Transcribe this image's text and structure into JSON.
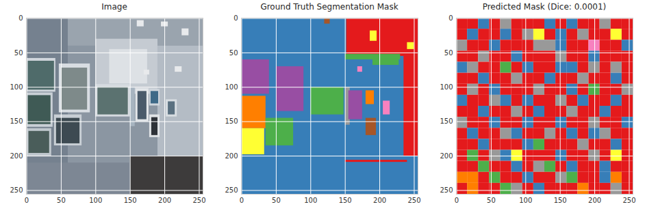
{
  "chart_data": [
    {
      "type": "image",
      "title": "Image",
      "xlim": [
        -0.5,
        255.5
      ],
      "ylim": [
        255.5,
        -0.5
      ],
      "xticks": [
        0,
        50,
        100,
        150,
        200,
        250
      ],
      "yticks": [
        0,
        50,
        100,
        150,
        200,
        250
      ],
      "grid": true,
      "regions": [
        {
          "x1": -0.5,
          "y1": -0.5,
          "x2": 255.5,
          "y2": 255.5,
          "color": "#8b96a2"
        },
        {
          "x1": -0.5,
          "y1": -0.5,
          "x2": 60,
          "y2": 255.5,
          "color": "#75818f"
        },
        {
          "x1": 60,
          "y1": -0.5,
          "x2": 255.5,
          "y2": 40,
          "color": "#9aa4ae"
        },
        {
          "x1": 100,
          "y1": 30,
          "x2": 190,
          "y2": 110,
          "color": "#c5cbd2"
        },
        {
          "x1": 120,
          "y1": 45,
          "x2": 175,
          "y2": 95,
          "color": "#dde1e5"
        },
        {
          "x1": 190,
          "y1": 40,
          "x2": 255.5,
          "y2": 200,
          "color": "#b4bcc5"
        },
        {
          "x1": 150,
          "y1": 200,
          "x2": 255.5,
          "y2": 255.5,
          "color": "#3d3b3b"
        },
        {
          "x1": -0.5,
          "y1": 210,
          "x2": 150,
          "y2": 255.5,
          "color": "#7d8794"
        },
        {
          "x1": 160,
          "y1": 3,
          "x2": 170,
          "y2": 12,
          "color": "#e8eaec"
        },
        {
          "x1": 195,
          "y1": 5,
          "x2": 205,
          "y2": 12,
          "color": "#e8eaec"
        },
        {
          "x1": 225,
          "y1": 15,
          "x2": 235,
          "y2": 25,
          "color": "#e8eaec"
        },
        {
          "x1": 215,
          "y1": 70,
          "x2": 225,
          "y2": 78,
          "color": "#e8eaec"
        },
        {
          "x1": 170,
          "y1": 75,
          "x2": 178,
          "y2": 82,
          "color": "#e8eaec"
        },
        {
          "x1": 0,
          "y1": 58,
          "x2": 42,
          "y2": 107,
          "color": "#d0d6dc"
        },
        {
          "x1": 2,
          "y1": 62,
          "x2": 40,
          "y2": 104,
          "color": "#4f6b6a"
        },
        {
          "x1": 47,
          "y1": 66,
          "x2": 92,
          "y2": 137,
          "color": "#d8dde2"
        },
        {
          "x1": 51,
          "y1": 72,
          "x2": 88,
          "y2": 133,
          "color": "#7e8a8a"
        },
        {
          "x1": 0,
          "y1": 108,
          "x2": 38,
          "y2": 158,
          "color": "#c9d0d6"
        },
        {
          "x1": 2,
          "y1": 112,
          "x2": 35,
          "y2": 154,
          "color": "#3f5a55"
        },
        {
          "x1": 0,
          "y1": 160,
          "x2": 36,
          "y2": 200,
          "color": "#c0c8ce"
        },
        {
          "x1": 3,
          "y1": 164,
          "x2": 33,
          "y2": 196,
          "color": "#4a5d5a"
        },
        {
          "x1": 40,
          "y1": 140,
          "x2": 80,
          "y2": 185,
          "color": "#c8cfd5"
        },
        {
          "x1": 43,
          "y1": 145,
          "x2": 77,
          "y2": 182,
          "color": "#3d4a52"
        },
        {
          "x1": 100,
          "y1": 96,
          "x2": 150,
          "y2": 143,
          "color": "#d6dbe0"
        },
        {
          "x1": 103,
          "y1": 100,
          "x2": 147,
          "y2": 140,
          "color": "#5b7270"
        },
        {
          "x1": 150,
          "y1": 100,
          "x2": 157,
          "y2": 157,
          "color": "#a7b4c0"
        },
        {
          "x1": 158,
          "y1": 102,
          "x2": 177,
          "y2": 150,
          "color": "#e4e7ea"
        },
        {
          "x1": 161,
          "y1": 106,
          "x2": 174,
          "y2": 147,
          "color": "#4a5a6a"
        },
        {
          "x1": 178,
          "y1": 103,
          "x2": 193,
          "y2": 127,
          "color": "#cfd6dd"
        },
        {
          "x1": 180,
          "y1": 106,
          "x2": 191,
          "y2": 124,
          "color": "#3e6a88"
        },
        {
          "x1": 178,
          "y1": 140,
          "x2": 193,
          "y2": 173,
          "color": "#e0e3e6"
        },
        {
          "x1": 181,
          "y1": 144,
          "x2": 190,
          "y2": 170,
          "color": "#2e3238"
        },
        {
          "x1": 202,
          "y1": 118,
          "x2": 218,
          "y2": 143,
          "color": "#d8dde2"
        },
        {
          "x1": 205,
          "y1": 121,
          "x2": 215,
          "y2": 140,
          "color": "#5a7080"
        }
      ]
    },
    {
      "type": "image",
      "title": "Ground Truth Segmentation Mask",
      "xlim": [
        -0.5,
        255.5
      ],
      "ylim": [
        255.5,
        -0.5
      ],
      "xticks": [
        0,
        50,
        100,
        150,
        200,
        250
      ],
      "yticks": [
        0,
        50,
        100,
        150,
        200,
        250
      ],
      "grid": true,
      "regions": [
        {
          "x1": -0.5,
          "y1": -0.5,
          "x2": 255.5,
          "y2": 255.5,
          "color": "#377eb8"
        },
        {
          "x1": 152,
          "y1": -0.5,
          "x2": 255.5,
          "y2": 55,
          "color": "#e41a1c"
        },
        {
          "x1": 235,
          "y1": 55,
          "x2": 255.5,
          "y2": 200,
          "color": "#e41a1c"
        },
        {
          "x1": 120,
          "y1": -0.5,
          "x2": 128,
          "y2": 8,
          "color": "#a65628"
        },
        {
          "x1": 186,
          "y1": 18,
          "x2": 196,
          "y2": 33,
          "color": "#ffff33"
        },
        {
          "x1": 240,
          "y1": 35,
          "x2": 250,
          "y2": 45,
          "color": "#ffff33"
        },
        {
          "x1": 150,
          "y1": 52,
          "x2": 230,
          "y2": 60,
          "color": "#4daf4a"
        },
        {
          "x1": 190,
          "y1": 60,
          "x2": 228,
          "y2": 68,
          "color": "#4daf4a"
        },
        {
          "x1": 168,
          "y1": 70,
          "x2": 175,
          "y2": 78,
          "color": "#f781bf"
        },
        {
          "x1": 0,
          "y1": 60,
          "x2": 40,
          "y2": 110,
          "color": "#984ea3"
        },
        {
          "x1": 50,
          "y1": 70,
          "x2": 90,
          "y2": 135,
          "color": "#984ea3"
        },
        {
          "x1": 0,
          "y1": 113,
          "x2": 35,
          "y2": 160,
          "color": "#ff7f00"
        },
        {
          "x1": 0,
          "y1": 160,
          "x2": 33,
          "y2": 198,
          "color": "#ffff33"
        },
        {
          "x1": 100,
          "y1": 100,
          "x2": 148,
          "y2": 140,
          "color": "#4daf4a"
        },
        {
          "x1": 35,
          "y1": 145,
          "x2": 75,
          "y2": 185,
          "color": "#4daf4a"
        },
        {
          "x1": 150,
          "y1": 100,
          "x2": 157,
          "y2": 155,
          "color": "#999999"
        },
        {
          "x1": 155,
          "y1": 105,
          "x2": 175,
          "y2": 147,
          "color": "#984ea3"
        },
        {
          "x1": 180,
          "y1": 105,
          "x2": 192,
          "y2": 125,
          "color": "#ff7f00"
        },
        {
          "x1": 205,
          "y1": 120,
          "x2": 215,
          "y2": 140,
          "color": "#f781bf"
        },
        {
          "x1": 180,
          "y1": 145,
          "x2": 195,
          "y2": 170,
          "color": "#a65628"
        },
        {
          "x1": 150,
          "y1": 206,
          "x2": 240,
          "y2": 209,
          "color": "#e41a1c"
        }
      ]
    },
    {
      "type": "image",
      "title": "Predicted Mask (Dice: 0.0001)",
      "xlim": [
        -0.5,
        255.5
      ],
      "ylim": [
        255.5,
        -0.5
      ],
      "xticks": [
        0,
        50,
        100,
        150,
        200,
        250
      ],
      "yticks": [
        0,
        50,
        100,
        150,
        200,
        250
      ],
      "grid": true,
      "palette": [
        "#377eb8",
        "#e41a1c",
        "#999999",
        "#4daf4a",
        "#ffff33",
        "#ff7f00",
        "#984ea3",
        "#f781bf"
      ],
      "cells": [
        [
          1,
          1,
          0,
          1,
          2,
          1,
          1,
          1,
          0,
          1,
          0,
          1,
          1,
          2,
          1,
          1
        ],
        [
          1,
          0,
          1,
          1,
          0,
          1,
          2,
          4,
          1,
          0,
          1,
          2,
          1,
          1,
          4,
          1
        ],
        [
          2,
          1,
          1,
          0,
          1,
          1,
          1,
          2,
          2,
          0,
          1,
          1,
          7,
          1,
          1,
          0
        ],
        [
          1,
          1,
          2,
          1,
          1,
          0,
          1,
          1,
          1,
          2,
          1,
          1,
          0,
          1,
          1,
          1
        ],
        [
          0,
          2,
          1,
          1,
          3,
          1,
          0,
          1,
          1,
          0,
          0,
          1,
          2,
          1,
          2,
          1
        ],
        [
          1,
          1,
          0,
          1,
          1,
          2,
          1,
          1,
          0,
          1,
          1,
          2,
          1,
          1,
          0,
          1
        ],
        [
          1,
          2,
          1,
          0,
          1,
          1,
          1,
          2,
          1,
          1,
          0,
          1,
          3,
          1,
          1,
          2
        ],
        [
          0,
          1,
          1,
          2,
          0,
          1,
          0,
          1,
          1,
          2,
          1,
          0,
          1,
          1,
          0,
          1
        ],
        [
          1,
          1,
          0,
          1,
          1,
          2,
          1,
          0,
          1,
          1,
          2,
          1,
          1,
          0,
          1,
          1
        ],
        [
          2,
          1,
          1,
          0,
          1,
          1,
          0,
          1,
          1,
          0,
          1,
          1,
          2,
          1,
          1,
          0
        ],
        [
          1,
          0,
          1,
          1,
          2,
          0,
          1,
          1,
          2,
          1,
          0,
          1,
          0,
          2,
          1,
          1
        ],
        [
          1,
          1,
          0,
          1,
          1,
          1,
          0,
          3,
          1,
          1,
          1,
          2,
          1,
          1,
          0,
          1
        ],
        [
          1,
          3,
          1,
          2,
          0,
          4,
          1,
          1,
          1,
          0,
          1,
          1,
          2,
          1,
          4,
          1
        ],
        [
          1,
          1,
          3,
          1,
          1,
          0,
          1,
          2,
          3,
          1,
          0,
          1,
          1,
          0,
          1,
          1
        ],
        [
          5,
          5,
          1,
          3,
          1,
          1,
          0,
          1,
          1,
          2,
          3,
          1,
          1,
          0,
          5,
          1
        ],
        [
          1,
          5,
          1,
          1,
          3,
          2,
          1,
          0,
          1,
          1,
          1,
          5,
          1,
          1,
          2,
          1
        ]
      ]
    }
  ]
}
